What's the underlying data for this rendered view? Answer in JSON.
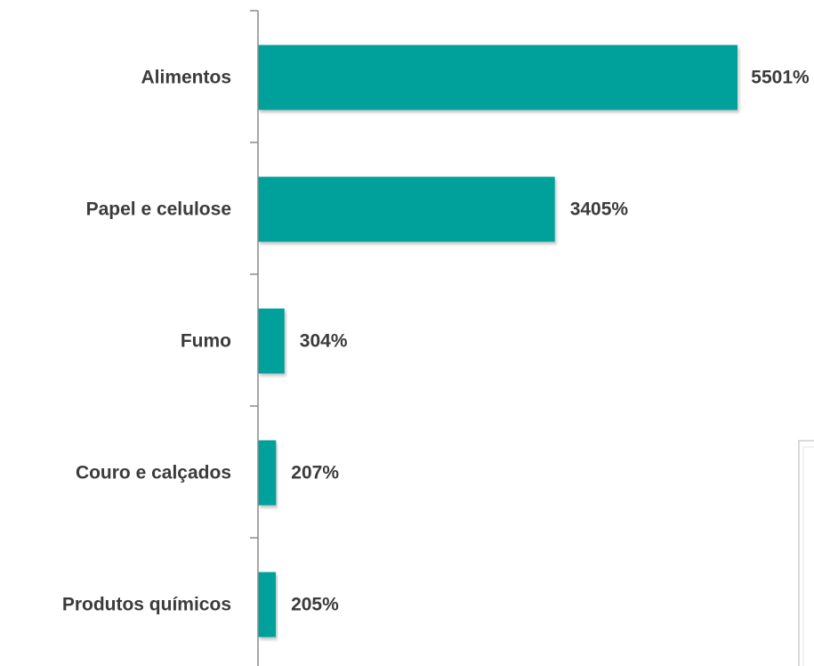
{
  "chart_data": {
    "type": "bar",
    "orientation": "horizontal",
    "categories": [
      "Alimentos",
      "Papel e celulose",
      "Fumo",
      "Couro e calçados",
      "Produtos químicos"
    ],
    "values": [
      5501,
      3405,
      304,
      207,
      205
    ],
    "value_labels": [
      "5501%",
      "3405%",
      "304%",
      "207%",
      "205%"
    ],
    "unit": "%",
    "xlim": [
      0,
      5500
    ],
    "grid": false,
    "bar_color": "#00a19a",
    "axis_color": "#8c8c8c",
    "text_color": "#3b3b3b"
  }
}
